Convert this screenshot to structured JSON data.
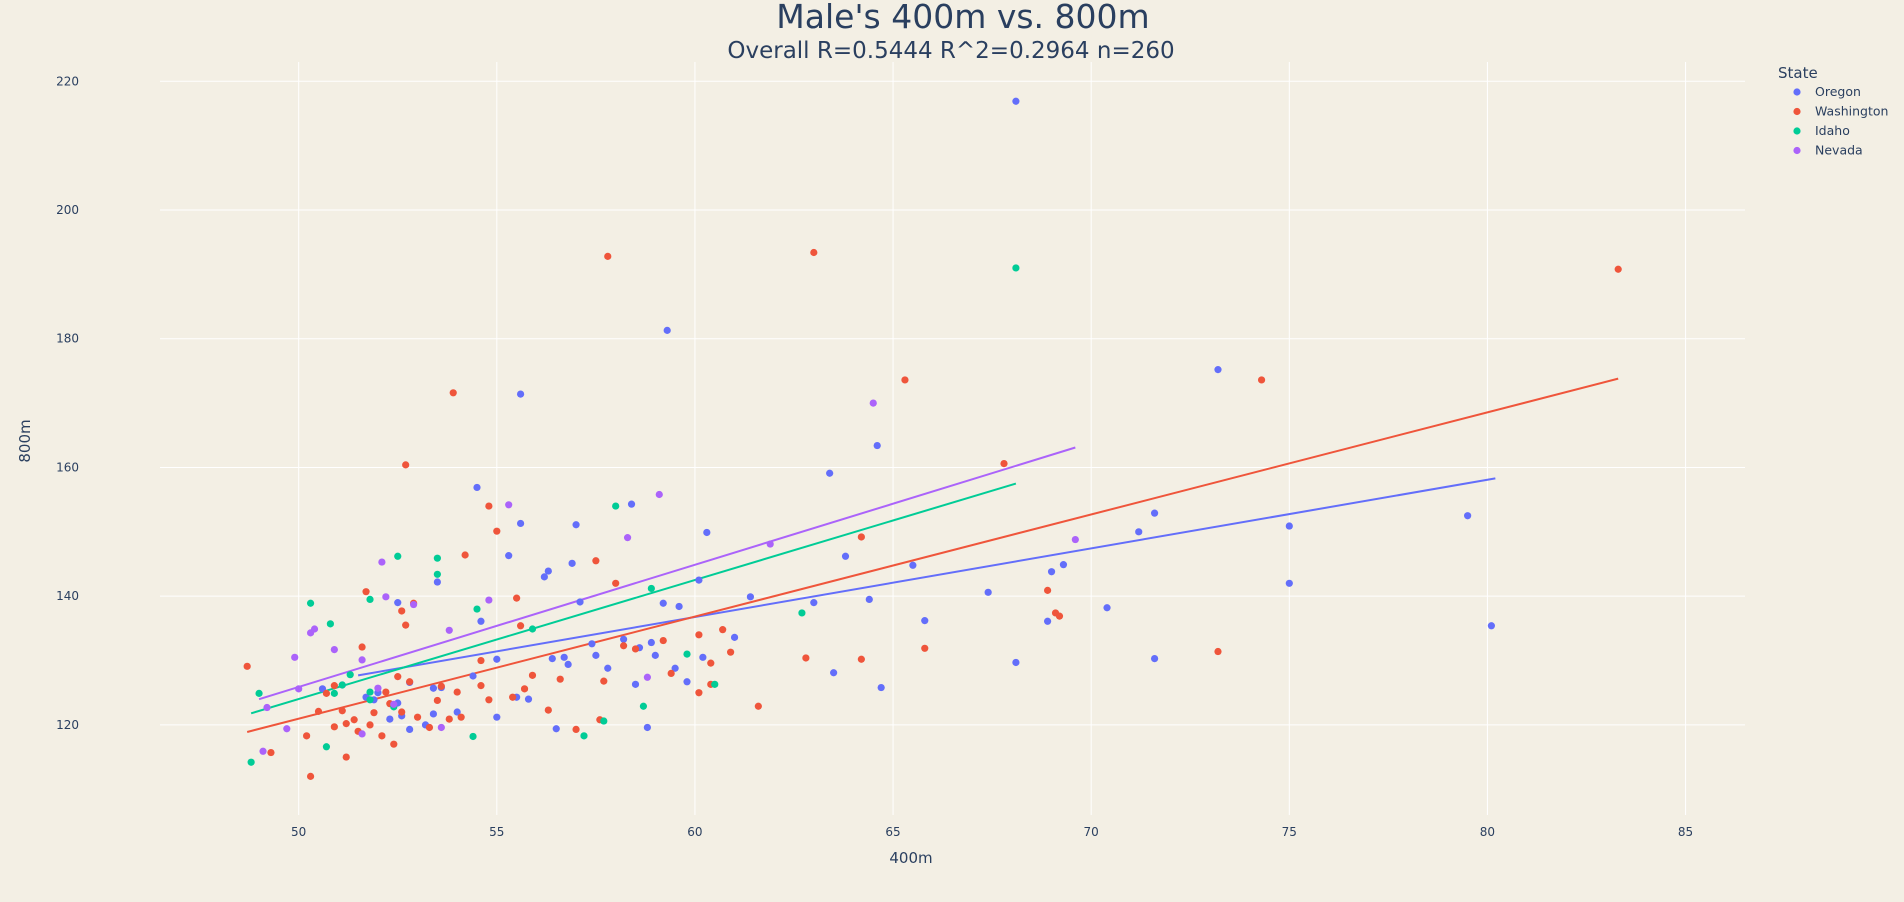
{
  "chart_data": {
    "type": "scatter",
    "title": "Male's 400m vs. 800m",
    "subtitle": "Overall R=0.5444 R^2=0.2964 n=260",
    "xlabel": "400m",
    "ylabel": "800m",
    "xlim": [
      46.5,
      86.5
    ],
    "ylim": [
      106,
      223
    ],
    "xticks": [
      50,
      55,
      60,
      65,
      70,
      75,
      80,
      85
    ],
    "yticks": [
      120,
      140,
      160,
      180,
      200,
      220
    ],
    "grid": true,
    "legend": {
      "title": "State",
      "position": "top-right"
    },
    "series": [
      {
        "name": "Oregon",
        "color": "#636efa",
        "trend": [
          [
            51.5,
            127.7
          ],
          [
            80.2,
            158.3
          ]
        ],
        "points": [
          [
            50.6,
            125.6
          ],
          [
            51.1,
            126.2
          ],
          [
            51.7,
            124.3
          ],
          [
            51.9,
            123.9
          ],
          [
            52.0,
            125.0
          ],
          [
            52.3,
            120.9
          ],
          [
            52.5,
            123.4
          ],
          [
            52.5,
            139.0
          ],
          [
            52.6,
            121.4
          ],
          [
            52.8,
            126.6
          ],
          [
            52.8,
            119.3
          ],
          [
            53.2,
            120.0
          ],
          [
            53.4,
            125.7
          ],
          [
            53.4,
            121.7
          ],
          [
            53.5,
            142.2
          ],
          [
            53.6,
            125.8
          ],
          [
            54.0,
            122.0
          ],
          [
            54.4,
            127.6
          ],
          [
            54.5,
            156.9
          ],
          [
            54.6,
            136.1
          ],
          [
            55.0,
            130.2
          ],
          [
            55.0,
            121.2
          ],
          [
            55.3,
            146.3
          ],
          [
            55.5,
            124.3
          ],
          [
            55.6,
            151.3
          ],
          [
            55.6,
            171.4
          ],
          [
            55.8,
            124.0
          ],
          [
            56.2,
            143.0
          ],
          [
            56.3,
            143.9
          ],
          [
            56.4,
            130.3
          ],
          [
            56.5,
            119.4
          ],
          [
            56.7,
            130.5
          ],
          [
            56.8,
            129.4
          ],
          [
            56.9,
            145.1
          ],
          [
            57.0,
            151.1
          ],
          [
            57.1,
            139.1
          ],
          [
            57.4,
            132.6
          ],
          [
            57.5,
            130.8
          ],
          [
            57.8,
            128.8
          ],
          [
            58.2,
            133.3
          ],
          [
            58.4,
            154.3
          ],
          [
            58.5,
            126.3
          ],
          [
            58.6,
            132.0
          ],
          [
            58.8,
            119.6
          ],
          [
            58.9,
            132.8
          ],
          [
            59.0,
            130.8
          ],
          [
            59.2,
            138.9
          ],
          [
            59.3,
            181.3
          ],
          [
            59.5,
            128.8
          ],
          [
            59.6,
            138.4
          ],
          [
            59.8,
            126.7
          ],
          [
            60.1,
            142.5
          ],
          [
            60.2,
            130.5
          ],
          [
            60.3,
            149.9
          ],
          [
            61.0,
            133.6
          ],
          [
            61.4,
            139.9
          ],
          [
            63.0,
            139.0
          ],
          [
            63.4,
            159.1
          ],
          [
            63.5,
            128.1
          ],
          [
            63.8,
            146.2
          ],
          [
            64.4,
            139.5
          ],
          [
            64.6,
            163.4
          ],
          [
            64.7,
            125.8
          ],
          [
            65.5,
            144.8
          ],
          [
            65.8,
            136.2
          ],
          [
            67.4,
            140.6
          ],
          [
            68.1,
            129.7
          ],
          [
            68.1,
            216.9
          ],
          [
            68.9,
            136.1
          ],
          [
            69.0,
            143.8
          ],
          [
            69.3,
            144.9
          ],
          [
            70.4,
            138.2
          ],
          [
            71.2,
            150.0
          ],
          [
            71.6,
            130.3
          ],
          [
            71.6,
            152.9
          ],
          [
            73.2,
            175.2
          ],
          [
            75.0,
            150.9
          ],
          [
            75.0,
            142.0
          ],
          [
            79.5,
            152.5
          ],
          [
            80.1,
            135.4
          ]
        ]
      },
      {
        "name": "Washington",
        "color": "#ef553b",
        "trend": [
          [
            48.7,
            118.9
          ],
          [
            83.3,
            173.8
          ]
        ],
        "points": [
          [
            48.7,
            129.1
          ],
          [
            49.3,
            115.7
          ],
          [
            50.2,
            118.3
          ],
          [
            50.3,
            112.0
          ],
          [
            50.5,
            122.1
          ],
          [
            50.7,
            124.9
          ],
          [
            50.9,
            126.1
          ],
          [
            50.9,
            119.7
          ],
          [
            51.1,
            122.2
          ],
          [
            51.2,
            120.2
          ],
          [
            51.2,
            115.0
          ],
          [
            51.4,
            120.8
          ],
          [
            51.5,
            119.0
          ],
          [
            51.6,
            132.1
          ],
          [
            51.7,
            140.7
          ],
          [
            51.8,
            120.0
          ],
          [
            51.9,
            121.9
          ],
          [
            52.1,
            118.3
          ],
          [
            52.2,
            125.1
          ],
          [
            52.3,
            123.3
          ],
          [
            52.4,
            117.0
          ],
          [
            52.5,
            127.5
          ],
          [
            52.6,
            137.7
          ],
          [
            52.6,
            122.0
          ],
          [
            52.7,
            160.4
          ],
          [
            52.7,
            135.5
          ],
          [
            52.8,
            126.7
          ],
          [
            52.9,
            138.9
          ],
          [
            53.0,
            121.2
          ],
          [
            53.3,
            119.6
          ],
          [
            53.5,
            123.8
          ],
          [
            53.6,
            126.0
          ],
          [
            53.8,
            120.9
          ],
          [
            53.9,
            171.6
          ],
          [
            54.0,
            125.1
          ],
          [
            54.1,
            121.2
          ],
          [
            54.2,
            146.4
          ],
          [
            54.6,
            130.0
          ],
          [
            54.6,
            126.1
          ],
          [
            54.8,
            154.0
          ],
          [
            54.8,
            123.9
          ],
          [
            55.0,
            150.1
          ],
          [
            55.4,
            124.3
          ],
          [
            55.5,
            139.7
          ],
          [
            55.6,
            135.4
          ],
          [
            55.7,
            125.6
          ],
          [
            55.9,
            127.7
          ],
          [
            56.3,
            122.3
          ],
          [
            56.6,
            127.1
          ],
          [
            57.0,
            119.3
          ],
          [
            57.5,
            145.5
          ],
          [
            57.6,
            120.8
          ],
          [
            57.7,
            126.8
          ],
          [
            57.8,
            192.8
          ],
          [
            58.0,
            142.0
          ],
          [
            58.2,
            132.3
          ],
          [
            58.5,
            131.8
          ],
          [
            59.2,
            133.1
          ],
          [
            59.4,
            128.0
          ],
          [
            60.1,
            134.0
          ],
          [
            60.1,
            125.0
          ],
          [
            60.4,
            129.6
          ],
          [
            60.4,
            126.3
          ],
          [
            60.7,
            134.8
          ],
          [
            60.9,
            131.3
          ],
          [
            61.6,
            122.9
          ],
          [
            62.8,
            130.4
          ],
          [
            63.0,
            193.4
          ],
          [
            64.2,
            149.2
          ],
          [
            64.2,
            130.2
          ],
          [
            65.3,
            173.6
          ],
          [
            65.8,
            131.9
          ],
          [
            67.8,
            160.6
          ],
          [
            68.9,
            140.9
          ],
          [
            69.1,
            137.4
          ],
          [
            69.2,
            136.9
          ],
          [
            73.2,
            131.4
          ],
          [
            74.3,
            173.6
          ],
          [
            83.3,
            190.8
          ]
        ]
      },
      {
        "name": "Idaho",
        "color": "#00cc96",
        "trend": [
          [
            48.8,
            121.8
          ],
          [
            68.1,
            157.5
          ]
        ],
        "points": [
          [
            48.8,
            114.2
          ],
          [
            49.0,
            124.9
          ],
          [
            50.3,
            138.9
          ],
          [
            50.7,
            116.6
          ],
          [
            50.8,
            135.7
          ],
          [
            50.9,
            124.9
          ],
          [
            51.1,
            126.2
          ],
          [
            51.3,
            127.8
          ],
          [
            51.8,
            139.5
          ],
          [
            51.8,
            125.1
          ],
          [
            51.8,
            123.9
          ],
          [
            52.4,
            122.8
          ],
          [
            52.5,
            146.2
          ],
          [
            53.5,
            145.9
          ],
          [
            53.5,
            143.4
          ],
          [
            54.4,
            118.2
          ],
          [
            54.5,
            138.0
          ],
          [
            55.9,
            134.9
          ],
          [
            57.2,
            118.3
          ],
          [
            57.7,
            120.6
          ],
          [
            58.0,
            154.0
          ],
          [
            58.7,
            122.9
          ],
          [
            58.9,
            141.2
          ],
          [
            59.8,
            131.0
          ],
          [
            60.5,
            126.3
          ],
          [
            62.7,
            137.4
          ],
          [
            68.1,
            191.0
          ]
        ]
      },
      {
        "name": "Nevada",
        "color": "#ab63fa",
        "trend": [
          [
            49.0,
            124.0
          ],
          [
            69.6,
            163.1
          ]
        ],
        "points": [
          [
            49.1,
            115.9
          ],
          [
            49.2,
            122.7
          ],
          [
            49.7,
            119.4
          ],
          [
            49.9,
            130.5
          ],
          [
            50.0,
            125.6
          ],
          [
            50.3,
            134.3
          ],
          [
            50.4,
            134.9
          ],
          [
            50.9,
            131.7
          ],
          [
            51.6,
            130.1
          ],
          [
            51.6,
            118.6
          ],
          [
            52.0,
            125.7
          ],
          [
            52.1,
            145.3
          ],
          [
            52.2,
            139.9
          ],
          [
            52.4,
            123.2
          ],
          [
            52.9,
            138.7
          ],
          [
            53.6,
            119.6
          ],
          [
            53.8,
            134.7
          ],
          [
            54.8,
            139.4
          ],
          [
            55.3,
            154.2
          ],
          [
            58.3,
            149.1
          ],
          [
            58.8,
            127.4
          ],
          [
            59.1,
            155.8
          ],
          [
            61.9,
            148.1
          ],
          [
            64.5,
            170.0
          ],
          [
            69.6,
            148.8
          ]
        ]
      }
    ]
  }
}
